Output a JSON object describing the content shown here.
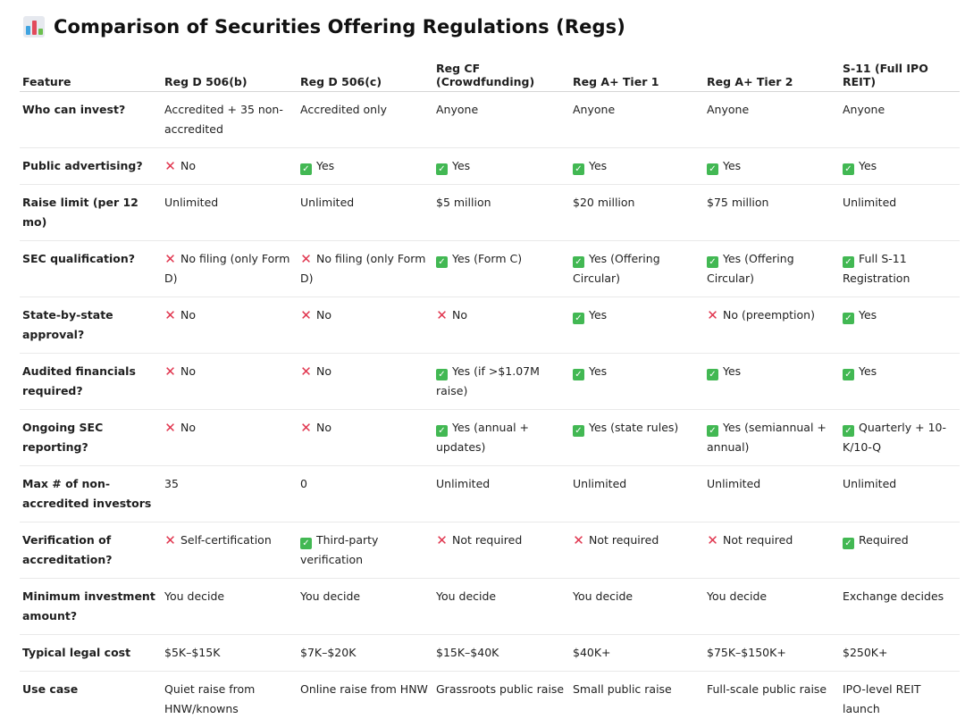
{
  "title": "Comparison of Securities Offering Regulations (Regs)",
  "title_icon": "bar-chart-icon",
  "colors": {
    "check": "#42b853",
    "cross": "#e0344d"
  },
  "columns": [
    "Feature",
    "Reg D 506(b)",
    "Reg D 506(c)",
    "Reg CF (Crowdfunding)",
    "Reg A+ Tier 1",
    "Reg A+ Tier 2",
    "S-11 (Full IPO REIT)"
  ],
  "rows": [
    {
      "feature": "Who can invest?",
      "cells": [
        {
          "mark": "",
          "text": "Accredited + 35 non-accredited"
        },
        {
          "mark": "",
          "text": "Accredited only"
        },
        {
          "mark": "",
          "text": "Anyone"
        },
        {
          "mark": "",
          "text": "Anyone"
        },
        {
          "mark": "",
          "text": "Anyone"
        },
        {
          "mark": "",
          "text": "Anyone"
        }
      ]
    },
    {
      "feature": "Public advertising?",
      "cells": [
        {
          "mark": "cross",
          "text": "No"
        },
        {
          "mark": "check",
          "text": "Yes"
        },
        {
          "mark": "check",
          "text": "Yes"
        },
        {
          "mark": "check",
          "text": "Yes"
        },
        {
          "mark": "check",
          "text": "Yes"
        },
        {
          "mark": "check",
          "text": "Yes"
        }
      ]
    },
    {
      "feature": "Raise limit (per 12 mo)",
      "cells": [
        {
          "mark": "",
          "text": "Unlimited"
        },
        {
          "mark": "",
          "text": "Unlimited"
        },
        {
          "mark": "",
          "text": "$5 million"
        },
        {
          "mark": "",
          "text": "$20 million"
        },
        {
          "mark": "",
          "text": "$75 million"
        },
        {
          "mark": "",
          "text": "Unlimited"
        }
      ]
    },
    {
      "feature": "SEC qualification?",
      "cells": [
        {
          "mark": "cross",
          "text": "No filing (only Form D)"
        },
        {
          "mark": "cross",
          "text": "No filing (only Form D)"
        },
        {
          "mark": "check",
          "text": "Yes (Form C)"
        },
        {
          "mark": "check",
          "text": "Yes (Offering Circular)"
        },
        {
          "mark": "check",
          "text": "Yes (Offering Circular)"
        },
        {
          "mark": "check",
          "text": "Full S-11 Registration"
        }
      ]
    },
    {
      "feature": "State-by-state approval?",
      "cells": [
        {
          "mark": "cross",
          "text": "No"
        },
        {
          "mark": "cross",
          "text": "No"
        },
        {
          "mark": "cross",
          "text": "No"
        },
        {
          "mark": "check",
          "text": "Yes"
        },
        {
          "mark": "cross",
          "text": "No (preemption)"
        },
        {
          "mark": "check",
          "text": "Yes"
        }
      ]
    },
    {
      "feature": "Audited financials required?",
      "cells": [
        {
          "mark": "cross",
          "text": "No"
        },
        {
          "mark": "cross",
          "text": "No"
        },
        {
          "mark": "check",
          "text": "Yes (if >$1.07M raise)"
        },
        {
          "mark": "check",
          "text": "Yes"
        },
        {
          "mark": "check",
          "text": "Yes"
        },
        {
          "mark": "check",
          "text": "Yes"
        }
      ]
    },
    {
      "feature": "Ongoing SEC reporting?",
      "cells": [
        {
          "mark": "cross",
          "text": "No"
        },
        {
          "mark": "cross",
          "text": "No"
        },
        {
          "mark": "check",
          "text": "Yes (annual + updates)"
        },
        {
          "mark": "check",
          "text": "Yes (state rules)"
        },
        {
          "mark": "check",
          "text": "Yes (semiannual + annual)"
        },
        {
          "mark": "check",
          "text": "Quarterly + 10-K/10-Q"
        }
      ]
    },
    {
      "feature": "Max # of non-accredited investors",
      "cells": [
        {
          "mark": "",
          "text": "35"
        },
        {
          "mark": "",
          "text": "0"
        },
        {
          "mark": "",
          "text": "Unlimited"
        },
        {
          "mark": "",
          "text": "Unlimited"
        },
        {
          "mark": "",
          "text": "Unlimited"
        },
        {
          "mark": "",
          "text": "Unlimited"
        }
      ]
    },
    {
      "feature": "Verification of accreditation?",
      "cells": [
        {
          "mark": "cross",
          "text": "Self-certification"
        },
        {
          "mark": "check",
          "text": "Third-party verification"
        },
        {
          "mark": "cross",
          "text": "Not required"
        },
        {
          "mark": "cross",
          "text": "Not required"
        },
        {
          "mark": "cross",
          "text": "Not required"
        },
        {
          "mark": "check",
          "text": "Required"
        }
      ]
    },
    {
      "feature": "Minimum investment amount?",
      "cells": [
        {
          "mark": "",
          "text": "You decide"
        },
        {
          "mark": "",
          "text": "You decide"
        },
        {
          "mark": "",
          "text": "You decide"
        },
        {
          "mark": "",
          "text": "You decide"
        },
        {
          "mark": "",
          "text": "You decide"
        },
        {
          "mark": "",
          "text": "Exchange decides"
        }
      ]
    },
    {
      "feature": "Typical legal cost",
      "cells": [
        {
          "mark": "",
          "text": "$5K–$15K"
        },
        {
          "mark": "",
          "text": "$7K–$20K"
        },
        {
          "mark": "",
          "text": "$15K–$40K"
        },
        {
          "mark": "",
          "text": "$40K+"
        },
        {
          "mark": "",
          "text": "$75K–$150K+"
        },
        {
          "mark": "",
          "text": "$250K+"
        }
      ]
    },
    {
      "feature": "Use case",
      "cells": [
        {
          "mark": "",
          "text": "Quiet raise from HNW/knowns"
        },
        {
          "mark": "",
          "text": "Online raise from HNW"
        },
        {
          "mark": "",
          "text": "Grassroots public raise"
        },
        {
          "mark": "",
          "text": "Small public raise"
        },
        {
          "mark": "",
          "text": "Full-scale public raise"
        },
        {
          "mark": "",
          "text": "IPO-level REIT launch"
        }
      ]
    }
  ]
}
